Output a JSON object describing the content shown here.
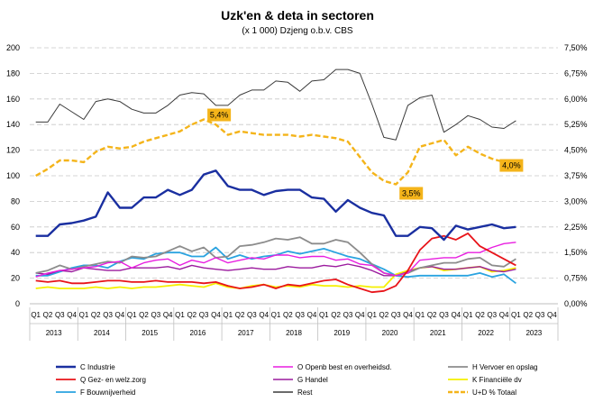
{
  "chart_data": {
    "type": "line",
    "title": "Uzk'en & deta in sectoren",
    "subtitle": "(x 1 000) Dzjeng o.b.v. CBS",
    "quarters": [
      "Q1",
      "Q2",
      "Q3",
      "Q4"
    ],
    "years": [
      "2013",
      "2014",
      "2015",
      "2016",
      "2017",
      "2018",
      "2019",
      "2020",
      "2021",
      "2022",
      "2023"
    ],
    "y_left": {
      "min": 0,
      "max": 200,
      "ticks": [
        "0",
        "20",
        "40",
        "60",
        "80",
        "100",
        "120",
        "140",
        "160",
        "180",
        "200"
      ]
    },
    "y_right": {
      "min": 0,
      "max": 7.5,
      "ticks": [
        "0,00%",
        "0,75%",
        "1,50%",
        "2,25%",
        "3,00%",
        "3,75%",
        "4,50%",
        "5,25%",
        "6,00%",
        "6,75%",
        "7,50%"
      ]
    },
    "series": [
      {
        "name": "C Industrie",
        "color": "#1a2fa0",
        "width": 2.4,
        "axis": "left",
        "values": [
          53,
          53,
          62,
          63,
          65,
          68,
          87,
          75,
          75,
          83,
          83,
          89,
          85,
          89,
          101,
          104,
          92,
          89,
          89,
          85,
          88,
          89,
          89,
          83,
          82,
          72,
          81,
          75,
          71,
          69,
          53,
          53,
          60,
          59,
          50,
          61,
          58,
          60,
          62,
          59,
          60
        ]
      },
      {
        "name": "O Openb best en overheidsd.",
        "color": "#e81fe0",
        "width": 1.4,
        "axis": "left",
        "values": [
          21,
          24,
          26,
          27,
          28,
          29,
          32,
          33,
          28,
          32,
          34,
          35,
          30,
          34,
          32,
          36,
          32,
          34,
          36,
          35,
          38,
          38,
          36,
          37,
          37,
          34,
          35,
          31,
          30,
          24,
          22,
          24,
          34,
          35,
          36,
          36,
          40,
          40,
          44,
          47,
          48
        ]
      },
      {
        "name": "H Vervoer en opslag",
        "color": "#8c8c8c",
        "width": 1.8,
        "axis": "left",
        "values": [
          24,
          26,
          30,
          27,
          29,
          31,
          33,
          32,
          37,
          36,
          37,
          41,
          45,
          41,
          44,
          36,
          37,
          45,
          46,
          48,
          51,
          50,
          52,
          47,
          47,
          50,
          48,
          40,
          31,
          24,
          22,
          24,
          28,
          30,
          32,
          32,
          35,
          36,
          30,
          29,
          35
        ]
      },
      {
        "name": "Q Gez- en welz.zorg",
        "color": "#e8141a",
        "width": 1.8,
        "axis": "left",
        "values": [
          18,
          17,
          18,
          16,
          16,
          17,
          18,
          18,
          17,
          17,
          18,
          17,
          17,
          17,
          16,
          17,
          14,
          12,
          13,
          15,
          12,
          15,
          14,
          16,
          18,
          19,
          15,
          12,
          9,
          10,
          14,
          26,
          42,
          51,
          53,
          50,
          55,
          45,
          40,
          35,
          30
        ]
      },
      {
        "name": "G Handel",
        "color": "#9b1b9e",
        "width": 1.4,
        "axis": "left",
        "values": [
          24,
          23,
          26,
          25,
          28,
          27,
          26,
          26,
          28,
          28,
          28,
          29,
          27,
          30,
          28,
          27,
          26,
          27,
          28,
          27,
          27,
          29,
          28,
          28,
          30,
          29,
          31,
          29,
          26,
          22,
          22,
          25,
          28,
          29,
          27,
          27,
          28,
          29,
          26,
          25,
          27
        ]
      },
      {
        "name": "Rest",
        "color": "#3a3a3a",
        "width": 1.0,
        "axis": "left",
        "values": [
          142,
          142,
          156,
          150,
          144,
          158,
          160,
          158,
          152,
          149,
          149,
          155,
          163,
          165,
          164,
          155,
          155,
          163,
          167,
          167,
          174,
          173,
          166,
          174,
          175,
          183,
          183,
          180,
          156,
          130,
          128,
          155,
          161,
          163,
          134,
          140,
          147,
          144,
          138,
          137,
          143
        ]
      },
      {
        "name": "F Bouwnijverheid",
        "color": "#2aa3e0",
        "width": 1.8,
        "axis": "left",
        "values": [
          22,
          22,
          25,
          28,
          30,
          30,
          28,
          33,
          36,
          35,
          39,
          40,
          40,
          37,
          37,
          44,
          35,
          38,
          35,
          37,
          38,
          41,
          39,
          41,
          43,
          40,
          37,
          35,
          31,
          27,
          22,
          21,
          22,
          22,
          22,
          22,
          22,
          24,
          21,
          23,
          16
        ]
      },
      {
        "name": "K Financiële dv",
        "color": "#f5f000",
        "width": 1.8,
        "axis": "left",
        "values": [
          12,
          13,
          12,
          12,
          12,
          13,
          12,
          13,
          12,
          13,
          13,
          14,
          15,
          14,
          13,
          16,
          13,
          12,
          14,
          15,
          13,
          14,
          13,
          15,
          14,
          14,
          13,
          14,
          13,
          13,
          23,
          26,
          28,
          29,
          26,
          27,
          28,
          29,
          25,
          26,
          28
        ]
      },
      {
        "name": "U+D % Totaal",
        "color": "#f4b41a",
        "width": 2.4,
        "axis": "right",
        "dashed": true,
        "values": [
          3.75,
          3.95,
          4.2,
          4.2,
          4.15,
          4.45,
          4.6,
          4.55,
          4.6,
          4.75,
          4.85,
          4.95,
          5.05,
          5.25,
          5.4,
          5.25,
          4.95,
          5.05,
          5.0,
          4.95,
          4.95,
          4.95,
          4.9,
          4.95,
          4.9,
          4.85,
          4.75,
          4.3,
          3.85,
          3.6,
          3.5,
          3.85,
          4.6,
          4.7,
          4.8,
          4.35,
          4.6,
          4.4,
          4.25,
          4.15,
          4.0
        ]
      }
    ],
    "annotations": [
      {
        "text": "5,4%",
        "series": 8,
        "index": 14
      },
      {
        "text": "3,5%",
        "series": 8,
        "index": 30
      },
      {
        "text": "4,0%",
        "series": 8,
        "index": 40
      }
    ],
    "legend": {
      "position": "bottom",
      "order": [
        0,
        1,
        2,
        3,
        4,
        7,
        6,
        5,
        8
      ]
    },
    "grid": true
  }
}
